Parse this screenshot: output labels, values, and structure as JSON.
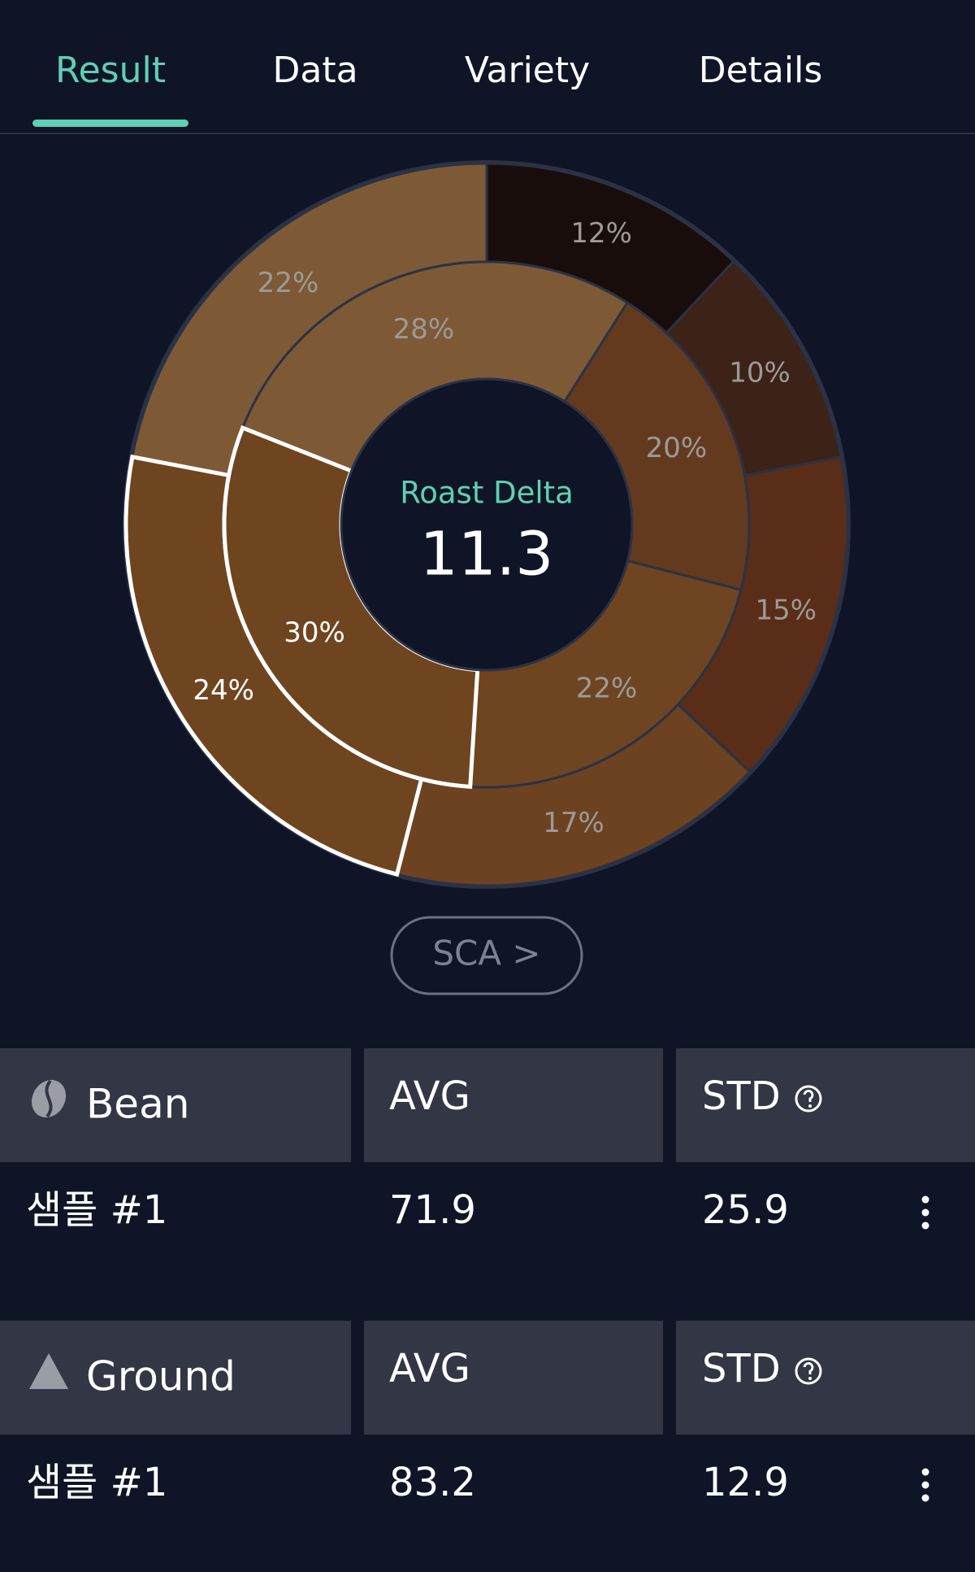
{
  "tabs": [
    "Result",
    "Data",
    "Variety",
    "Details"
  ],
  "chart_data": {
    "type": "donut",
    "center_label": "Roast Delta",
    "center_value": "11.3",
    "rings": [
      {
        "values": [
          12,
          10,
          15,
          17,
          24,
          22
        ],
        "value_labels": [
          "12%",
          "10%",
          "15%",
          "17%",
          "24%",
          "22%"
        ],
        "colors": [
          "#190d0b",
          "#3c2217",
          "#5a2d18",
          "#6c4220",
          "#6f4520",
          "#7d5a35"
        ],
        "highlighted": 4
      },
      {
        "values": [
          28,
          20,
          22,
          30
        ],
        "value_labels": [
          "28%",
          "20%",
          "22%",
          "30%"
        ],
        "colors": [
          "#7d5a35",
          "#643a1e",
          "#6e4520",
          "#6f4520"
        ],
        "highlighted": 3
      }
    ]
  },
  "button": "SCA >",
  "tables": [
    {
      "title": "Bean",
      "columns": [
        "AVG",
        "STD"
      ],
      "rows": [
        {
          "name": "샘플 #1",
          "avg": "71.9",
          "std": "25.9"
        }
      ]
    },
    {
      "title": "Ground",
      "columns": [
        "AVG",
        "STD"
      ],
      "rows": [
        {
          "name": "샘플 #1",
          "avg": "83.2",
          "std": "12.9"
        }
      ]
    }
  ]
}
